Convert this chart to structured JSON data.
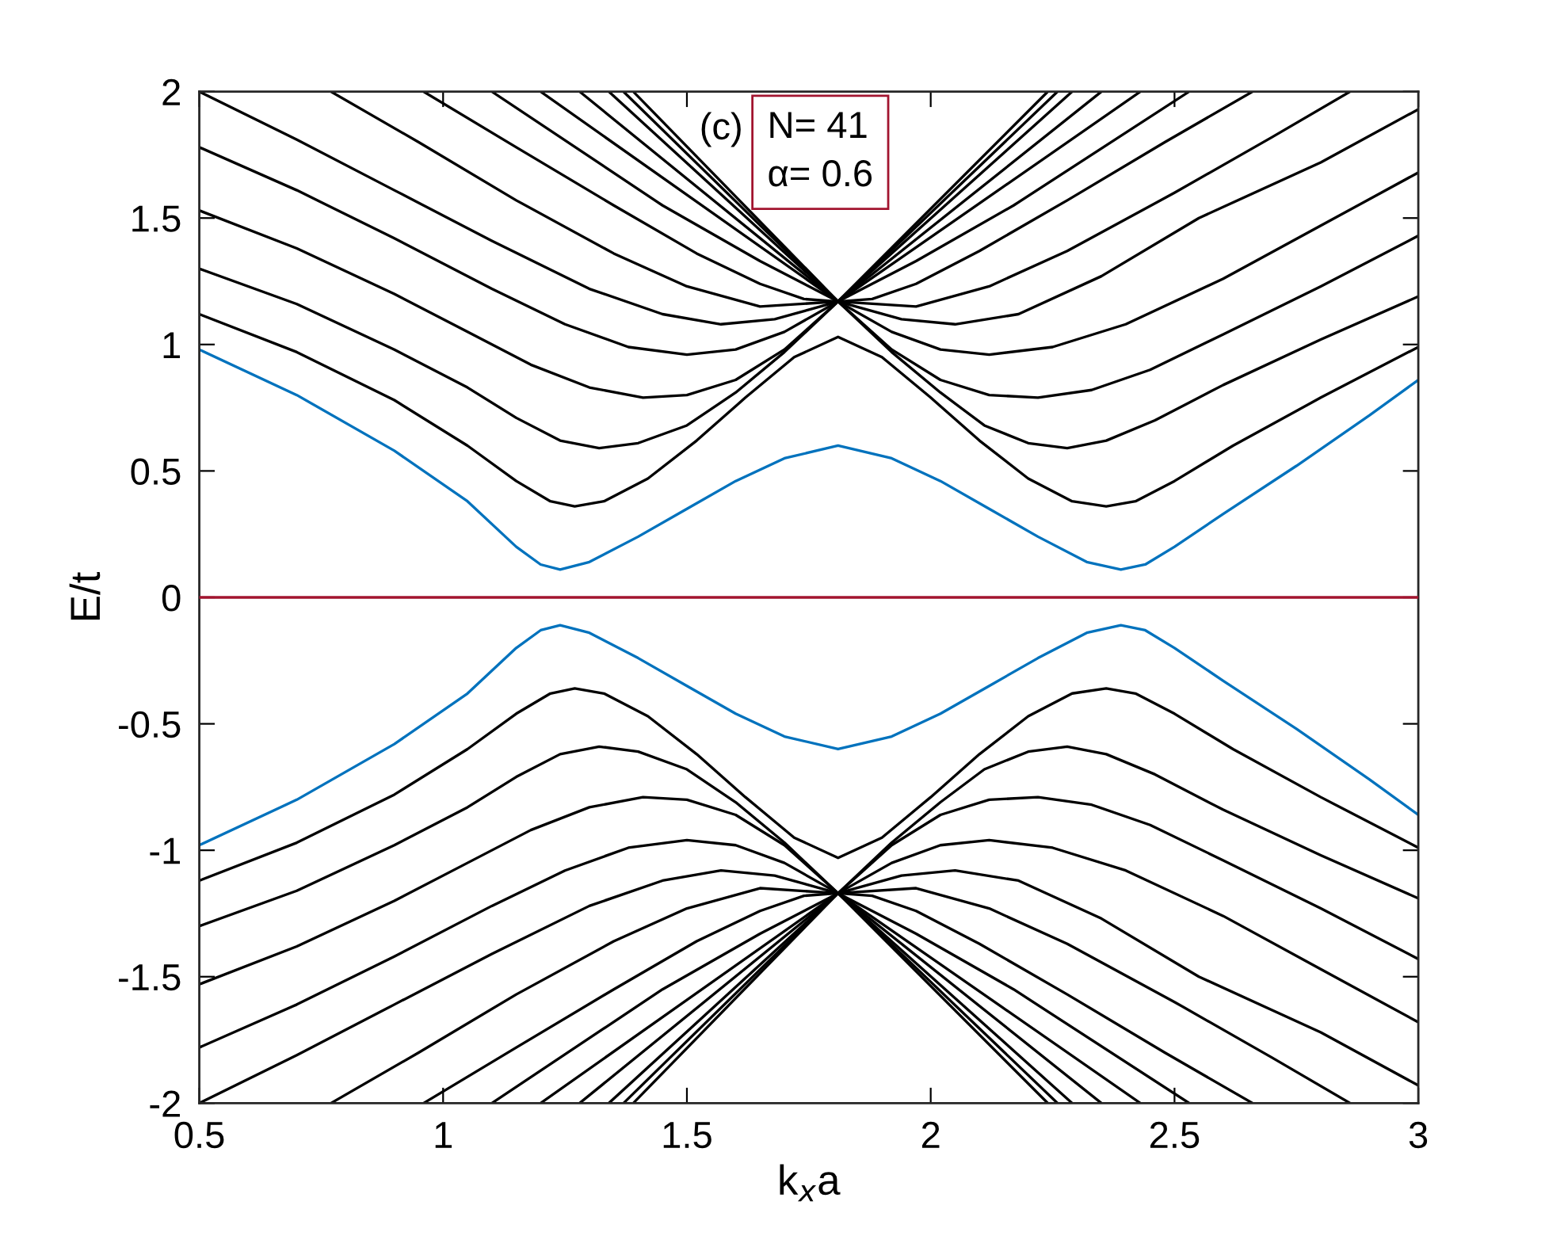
{
  "chart_data": {
    "type": "line",
    "xlabel": "k$_{x}$a",
    "ylabel": "E/t",
    "annotations": [
      "(c)",
      "N= 41\nα= 0.6"
    ],
    "xlim": [
      0.5,
      3
    ],
    "ylim": [
      -2,
      2
    ],
    "xticks": [
      0.5,
      1,
      1.5,
      2,
      2.5,
      3
    ],
    "yticks": [
      -2,
      -1.5,
      -1,
      -0.5,
      0,
      0.5,
      1,
      1.5,
      2
    ],
    "grid": false,
    "legend": false,
    "marker": "none",
    "line_style": "solid",
    "ref_lines": [
      {
        "axis": "y",
        "value": 0,
        "color": "#a2142f"
      }
    ],
    "series": [
      {
        "color": "#0072bd",
        "x": [
          0.5,
          0.7,
          0.9,
          1.05,
          1.15,
          1.2,
          1.24,
          1.3,
          1.4,
          1.5,
          1.6,
          1.7,
          1.81,
          1.92,
          2.02,
          2.12,
          2.22,
          2.32,
          2.39,
          2.44,
          2.5,
          2.6,
          2.75,
          2.9,
          3.0
        ],
        "values": [
          0.98,
          0.8,
          0.58,
          0.38,
          0.2,
          0.13,
          0.11,
          0.14,
          0.24,
          0.35,
          0.46,
          0.55,
          0.6,
          0.55,
          0.46,
          0.35,
          0.24,
          0.14,
          0.11,
          0.13,
          0.2,
          0.33,
          0.52,
          0.72,
          0.86
        ]
      },
      {
        "color": "#0072bd",
        "x": [
          0.5,
          0.7,
          0.9,
          1.05,
          1.15,
          1.2,
          1.24,
          1.3,
          1.4,
          1.5,
          1.6,
          1.7,
          1.81,
          1.92,
          2.02,
          2.12,
          2.22,
          2.32,
          2.39,
          2.44,
          2.5,
          2.6,
          2.75,
          2.9,
          3.0
        ],
        "values": [
          -0.98,
          -0.8,
          -0.58,
          -0.38,
          -0.2,
          -0.13,
          -0.11,
          -0.14,
          -0.24,
          -0.35,
          -0.46,
          -0.55,
          -0.6,
          -0.55,
          -0.46,
          -0.35,
          -0.24,
          -0.14,
          -0.11,
          -0.13,
          -0.2,
          -0.33,
          -0.52,
          -0.72,
          -0.86
        ]
      },
      {
        "color": "#000000",
        "x": [
          0.5,
          0.7,
          0.9,
          1.05,
          1.15,
          1.22,
          1.27,
          1.33,
          1.42,
          1.52,
          1.62,
          1.72,
          1.81,
          1.9,
          2.0,
          2.1,
          2.2,
          2.29,
          2.36,
          2.42,
          2.5,
          2.62,
          2.8,
          3.0
        ],
        "values": [
          1.12,
          0.97,
          0.78,
          0.6,
          0.46,
          0.38,
          0.36,
          0.38,
          0.47,
          0.62,
          0.79,
          0.95,
          1.03,
          0.95,
          0.79,
          0.62,
          0.47,
          0.38,
          0.36,
          0.38,
          0.46,
          0.6,
          0.79,
          0.99
        ]
      },
      {
        "color": "#000000",
        "x": [
          0.5,
          0.7,
          0.9,
          1.05,
          1.15,
          1.24,
          1.32,
          1.4,
          1.5,
          1.6,
          1.7,
          1.81,
          1.92,
          2.02,
          2.11,
          2.2,
          2.28,
          2.36,
          2.46,
          2.6,
          2.8,
          3.0
        ],
        "values": [
          1.3,
          1.16,
          0.98,
          0.83,
          0.71,
          0.62,
          0.59,
          0.61,
          0.68,
          0.81,
          0.97,
          1.17,
          0.97,
          0.81,
          0.68,
          0.61,
          0.59,
          0.62,
          0.7,
          0.84,
          1.02,
          1.19
        ]
      },
      {
        "color": "#000000",
        "x": [
          0.5,
          0.7,
          0.9,
          1.05,
          1.18,
          1.3,
          1.41,
          1.5,
          1.6,
          1.7,
          1.81,
          1.92,
          2.02,
          2.12,
          2.22,
          2.33,
          2.45,
          2.6,
          2.8,
          3.0
        ],
        "values": [
          1.53,
          1.38,
          1.2,
          1.05,
          0.92,
          0.83,
          0.79,
          0.8,
          0.86,
          0.98,
          1.17,
          0.98,
          0.86,
          0.8,
          0.79,
          0.82,
          0.9,
          1.04,
          1.23,
          1.43
        ]
      },
      {
        "color": "#000000",
        "x": [
          0.5,
          0.7,
          0.9,
          1.1,
          1.25,
          1.38,
          1.5,
          1.6,
          1.7,
          1.81,
          1.92,
          2.02,
          2.12,
          2.25,
          2.4,
          2.6,
          2.8,
          3.0
        ],
        "values": [
          1.78,
          1.61,
          1.42,
          1.22,
          1.08,
          0.99,
          0.96,
          0.98,
          1.05,
          1.17,
          1.05,
          0.98,
          0.96,
          0.99,
          1.08,
          1.26,
          1.47,
          1.68
        ]
      },
      {
        "color": "#000000",
        "x": [
          0.5,
          0.7,
          0.9,
          1.1,
          1.3,
          1.45,
          1.57,
          1.68,
          1.81,
          1.94,
          2.05,
          2.18,
          2.35,
          2.55,
          2.8,
          3.0
        ],
        "values": [
          2,
          1.81,
          1.61,
          1.41,
          1.22,
          1.12,
          1.08,
          1.1,
          1.17,
          1.1,
          1.08,
          1.12,
          1.27,
          1.5,
          1.72,
          1.93
        ]
      },
      {
        "color": "#000000",
        "x": [
          0.77,
          0.95,
          1.15,
          1.35,
          1.5,
          1.65,
          1.81,
          1.97,
          2.12,
          2.28,
          2.5,
          2.7,
          2.86
        ],
        "values": [
          2,
          1.8,
          1.57,
          1.36,
          1.23,
          1.15,
          1.17,
          1.15,
          1.23,
          1.37,
          1.6,
          1.82,
          2
        ]
      },
      {
        "color": "#000000",
        "x": [
          0.96,
          1.15,
          1.35,
          1.52,
          1.65,
          1.74,
          1.81,
          1.88,
          1.97,
          2.1,
          2.28,
          2.48,
          2.66
        ],
        "values": [
          2,
          1.78,
          1.55,
          1.36,
          1.24,
          1.18,
          1.17,
          1.18,
          1.24,
          1.37,
          1.57,
          1.8,
          2
        ]
      },
      {
        "color": "#000000",
        "x": [
          1.1,
          1.45,
          1.65,
          1.81,
          1.97,
          2.17,
          2.53
        ],
        "values": [
          2,
          1.55,
          1.33,
          1.17,
          1.33,
          1.55,
          2
        ]
      },
      {
        "color": "#000000",
        "x": [
          1.2,
          1.81,
          2.43
        ],
        "values": [
          2,
          1.17,
          2
        ]
      },
      {
        "color": "#000000",
        "x": [
          1.28,
          1.81,
          2.35
        ],
        "values": [
          2,
          1.17,
          2
        ]
      },
      {
        "color": "#000000",
        "x": [
          1.34,
          1.81,
          2.29
        ],
        "values": [
          2,
          1.17,
          2
        ]
      },
      {
        "color": "#000000",
        "x": [
          1.37,
          1.81,
          2.26
        ],
        "values": [
          2,
          1.17,
          2
        ]
      },
      {
        "color": "#000000",
        "x": [
          1.39,
          1.81,
          2.24
        ],
        "values": [
          2,
          1.17,
          2
        ]
      },
      {
        "color": "#000000",
        "x": [
          0.5,
          0.7,
          0.9,
          1.05,
          1.15,
          1.22,
          1.27,
          1.33,
          1.42,
          1.52,
          1.62,
          1.72,
          1.81,
          1.9,
          2.0,
          2.1,
          2.2,
          2.29,
          2.36,
          2.42,
          2.5,
          2.62,
          2.8,
          3.0
        ],
        "values": [
          -1.12,
          -0.97,
          -0.78,
          -0.6,
          -0.46,
          -0.38,
          -0.36,
          -0.38,
          -0.47,
          -0.62,
          -0.79,
          -0.95,
          -1.03,
          -0.95,
          -0.79,
          -0.62,
          -0.47,
          -0.38,
          -0.36,
          -0.38,
          -0.46,
          -0.6,
          -0.79,
          -0.99
        ]
      },
      {
        "color": "#000000",
        "x": [
          0.5,
          0.7,
          0.9,
          1.05,
          1.15,
          1.24,
          1.32,
          1.4,
          1.5,
          1.6,
          1.7,
          1.81,
          1.92,
          2.02,
          2.11,
          2.2,
          2.28,
          2.36,
          2.46,
          2.6,
          2.8,
          3.0
        ],
        "values": [
          -1.3,
          -1.16,
          -0.98,
          -0.83,
          -0.71,
          -0.62,
          -0.59,
          -0.61,
          -0.68,
          -0.81,
          -0.97,
          -1.17,
          -0.97,
          -0.81,
          -0.68,
          -0.61,
          -0.59,
          -0.62,
          -0.7,
          -0.84,
          -1.02,
          -1.19
        ]
      },
      {
        "color": "#000000",
        "x": [
          0.5,
          0.7,
          0.9,
          1.05,
          1.18,
          1.3,
          1.41,
          1.5,
          1.6,
          1.7,
          1.81,
          1.92,
          2.02,
          2.12,
          2.22,
          2.33,
          2.45,
          2.6,
          2.8,
          3.0
        ],
        "values": [
          -1.53,
          -1.38,
          -1.2,
          -1.05,
          -0.92,
          -0.83,
          -0.79,
          -0.8,
          -0.86,
          -0.98,
          -1.17,
          -0.98,
          -0.86,
          -0.8,
          -0.79,
          -0.82,
          -0.9,
          -1.04,
          -1.23,
          -1.43
        ]
      },
      {
        "color": "#000000",
        "x": [
          0.5,
          0.7,
          0.9,
          1.1,
          1.25,
          1.38,
          1.5,
          1.6,
          1.7,
          1.81,
          1.92,
          2.02,
          2.12,
          2.25,
          2.4,
          2.6,
          2.8,
          3.0
        ],
        "values": [
          -1.78,
          -1.61,
          -1.42,
          -1.22,
          -1.08,
          -0.99,
          -0.96,
          -0.98,
          -1.05,
          -1.17,
          -1.05,
          -0.98,
          -0.96,
          -0.99,
          -1.08,
          -1.26,
          -1.47,
          -1.68
        ]
      },
      {
        "color": "#000000",
        "x": [
          0.5,
          0.7,
          0.9,
          1.1,
          1.3,
          1.45,
          1.57,
          1.68,
          1.81,
          1.94,
          2.05,
          2.18,
          2.35,
          2.55,
          2.8,
          3.0
        ],
        "values": [
          -2,
          -1.81,
          -1.61,
          -1.41,
          -1.22,
          -1.12,
          -1.08,
          -1.1,
          -1.17,
          -1.1,
          -1.08,
          -1.12,
          -1.27,
          -1.5,
          -1.72,
          -1.93
        ]
      },
      {
        "color": "#000000",
        "x": [
          0.77,
          0.95,
          1.15,
          1.35,
          1.5,
          1.65,
          1.81,
          1.97,
          2.12,
          2.28,
          2.5,
          2.7,
          2.86
        ],
        "values": [
          -2,
          -1.8,
          -1.57,
          -1.36,
          -1.23,
          -1.15,
          -1.17,
          -1.15,
          -1.23,
          -1.37,
          -1.6,
          -1.82,
          -2
        ]
      },
      {
        "color": "#000000",
        "x": [
          0.96,
          1.15,
          1.35,
          1.52,
          1.65,
          1.74,
          1.81,
          1.88,
          1.97,
          2.1,
          2.28,
          2.48,
          2.66
        ],
        "values": [
          -2,
          -1.78,
          -1.55,
          -1.36,
          -1.24,
          -1.18,
          -1.17,
          -1.18,
          -1.24,
          -1.37,
          -1.57,
          -1.8,
          -2
        ]
      },
      {
        "color": "#000000",
        "x": [
          1.1,
          1.45,
          1.65,
          1.81,
          1.97,
          2.17,
          2.53
        ],
        "values": [
          -2,
          -1.55,
          -1.33,
          -1.17,
          -1.33,
          -1.55,
          -2
        ]
      },
      {
        "color": "#000000",
        "x": [
          1.2,
          1.81,
          2.43
        ],
        "values": [
          -2,
          -1.17,
          -2
        ]
      },
      {
        "color": "#000000",
        "x": [
          1.28,
          1.81,
          2.35
        ],
        "values": [
          -2,
          -1.17,
          -2
        ]
      },
      {
        "color": "#000000",
        "x": [
          1.34,
          1.81,
          2.29
        ],
        "values": [
          -2,
          -1.17,
          -2
        ]
      },
      {
        "color": "#000000",
        "x": [
          1.37,
          1.81,
          2.26
        ],
        "values": [
          -2,
          -1.17,
          -2
        ]
      },
      {
        "color": "#000000",
        "x": [
          1.39,
          1.81,
          2.24
        ],
        "values": [
          -2,
          -1.17,
          -2
        ]
      }
    ]
  }
}
